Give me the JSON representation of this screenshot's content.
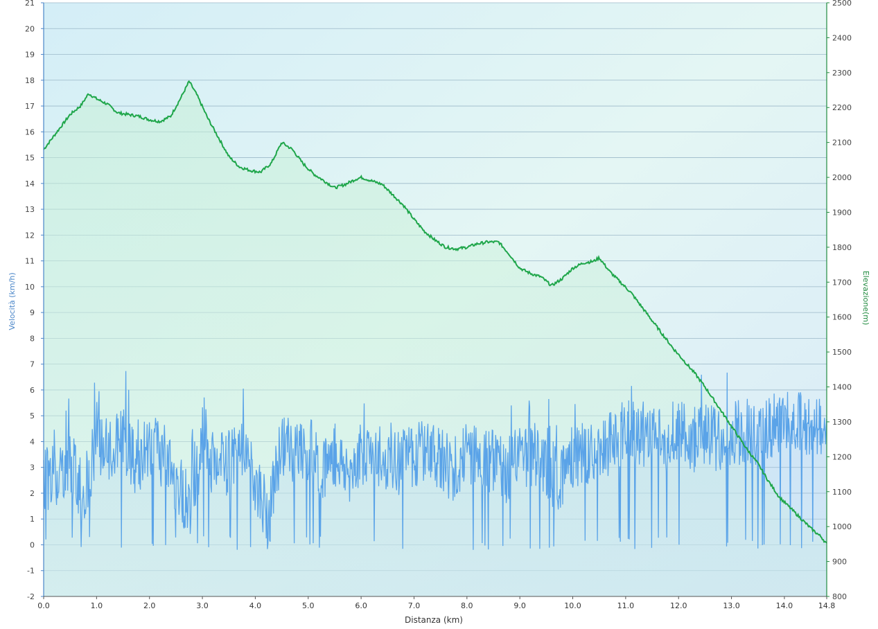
{
  "chart_data": {
    "type": "line",
    "xlabel": "Distanza  (km)",
    "ylabel_left": "Velocità (km/h)",
    "ylabel_right": "Elevazione(m)",
    "xlim": [
      0,
      14.8
    ],
    "ylim_left": [
      -2,
      21
    ],
    "ylim_right": [
      800,
      2500
    ],
    "x_ticks": [
      0.0,
      1.0,
      2.0,
      3.0,
      4.0,
      5.0,
      6.0,
      7.0,
      8.0,
      9.0,
      10.0,
      11.0,
      12.0,
      13.0,
      14.0,
      14.8
    ],
    "x_tick_labels": [
      "0.0",
      "1.0",
      "2.0",
      "3.0",
      "4.0",
      "5.0",
      "6.0",
      "7.0",
      "8.0",
      "9.0",
      "10.0",
      "11.0",
      "12.0",
      "13.0",
      "14.0",
      "14.8"
    ],
    "y_left_ticks": [
      -2,
      -1,
      0,
      1,
      2,
      3,
      4,
      5,
      6,
      7,
      8,
      9,
      10,
      11,
      12,
      13,
      14,
      15,
      16,
      17,
      18,
      19,
      20,
      21
    ],
    "y_right_ticks": [
      800,
      900,
      1000,
      1100,
      1200,
      1300,
      1400,
      1500,
      1600,
      1700,
      1800,
      1900,
      2000,
      2100,
      2200,
      2300,
      2400,
      2500
    ],
    "grid": true,
    "colors": {
      "speed": "#5aa3e8",
      "elevation": "#1fa64a",
      "left_axis": "#4a86c8",
      "right_axis": "#1f8a3e",
      "grid": "#9bb8c8"
    },
    "series": [
      {
        "name": "Elevazione(m)",
        "axis": "right",
        "x": [
          0.0,
          0.15,
          0.3,
          0.5,
          0.7,
          0.85,
          1.0,
          1.2,
          1.4,
          1.6,
          1.8,
          2.0,
          2.2,
          2.4,
          2.6,
          2.75,
          2.9,
          3.1,
          3.3,
          3.5,
          3.7,
          3.9,
          4.1,
          4.3,
          4.5,
          4.7,
          4.9,
          5.1,
          5.3,
          5.5,
          5.7,
          5.9,
          6.0,
          6.2,
          6.4,
          6.6,
          6.8,
          7.0,
          7.2,
          7.4,
          7.6,
          7.8,
          8.0,
          8.2,
          8.4,
          8.6,
          8.8,
          9.0,
          9.2,
          9.4,
          9.6,
          9.8,
          10.0,
          10.2,
          10.4,
          10.5,
          10.7,
          10.9,
          11.1,
          11.3,
          11.5,
          11.7,
          11.9,
          12.1,
          12.3,
          12.5,
          12.7,
          12.9,
          13.1,
          13.3,
          13.5,
          13.7,
          13.9,
          14.1,
          14.3,
          14.5,
          14.7,
          14.8
        ],
        "y": [
          2080,
          2110,
          2140,
          2180,
          2205,
          2240,
          2225,
          2210,
          2185,
          2180,
          2175,
          2165,
          2160,
          2175,
          2230,
          2275,
          2235,
          2170,
          2115,
          2060,
          2030,
          2020,
          2015,
          2040,
          2100,
          2080,
          2040,
          2010,
          1990,
          1970,
          1980,
          1995,
          2000,
          1990,
          1980,
          1950,
          1920,
          1880,
          1845,
          1820,
          1800,
          1795,
          1800,
          1810,
          1815,
          1815,
          1780,
          1740,
          1725,
          1715,
          1690,
          1710,
          1740,
          1755,
          1760,
          1770,
          1730,
          1700,
          1670,
          1630,
          1590,
          1550,
          1510,
          1475,
          1440,
          1400,
          1355,
          1310,
          1265,
          1220,
          1180,
          1130,
          1085,
          1055,
          1025,
          995,
          970,
          950
        ],
        "values_note": ""
      },
      {
        "name": "Velocità (km/h)",
        "axis": "left",
        "x": [
          0.0,
          0.25,
          0.5,
          0.75,
          1.0,
          1.25,
          1.5,
          1.75,
          2.0,
          2.25,
          2.5,
          2.75,
          3.0,
          3.25,
          3.5,
          3.75,
          4.0,
          4.25,
          4.5,
          4.75,
          5.0,
          5.25,
          5.5,
          5.75,
          6.0,
          6.25,
          6.5,
          6.75,
          7.0,
          7.25,
          7.5,
          7.75,
          8.0,
          8.25,
          8.5,
          8.75,
          9.0,
          9.25,
          9.5,
          9.75,
          10.0,
          10.25,
          10.5,
          10.75,
          11.0,
          11.25,
          11.5,
          11.75,
          12.0,
          12.25,
          12.5,
          12.75,
          13.0,
          13.25,
          13.5,
          13.75,
          14.0,
          14.25,
          14.5,
          14.8
        ],
        "y": [
          2.5,
          2.8,
          3.2,
          2.0,
          4.0,
          3.5,
          4.2,
          3.0,
          4.0,
          3.5,
          2.5,
          1.5,
          3.5,
          3.0,
          3.2,
          3.5,
          2.5,
          1.0,
          4.0,
          3.5,
          3.8,
          3.0,
          3.5,
          2.8,
          3.5,
          3.8,
          3.0,
          3.2,
          3.5,
          3.8,
          3.2,
          3.0,
          3.5,
          3.5,
          3.2,
          2.8,
          3.5,
          3.5,
          3.0,
          2.5,
          3.5,
          3.5,
          3.8,
          4.0,
          4.5,
          4.2,
          4.5,
          4.0,
          4.5,
          4.0,
          4.3,
          4.0,
          4.2,
          4.5,
          4.2,
          4.5,
          4.8,
          4.8,
          4.5,
          4.6
        ]
      }
    ]
  }
}
